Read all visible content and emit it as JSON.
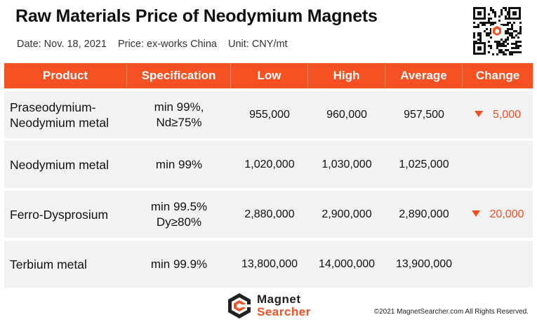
{
  "header": {
    "title": "Raw Materials Price of Neodymium Magnets",
    "date": "Date: Nov. 18, 2021",
    "price_basis": "Price: ex-works China",
    "unit": "Unit: CNY/mt"
  },
  "table": {
    "columns": [
      "Product",
      "Specification",
      "Low",
      "High",
      "Average",
      "Change"
    ],
    "rows": [
      {
        "product": "Praseodymium-\nNeodymium metal",
        "spec": "min 99%,\nNd≥75%",
        "low": "955,000",
        "high": "960,000",
        "average": "957,500",
        "change": "5,000",
        "change_direction": "down"
      },
      {
        "product": "Neodymium metal",
        "spec": "min 99%",
        "low": "1,020,000",
        "high": "1,030,000",
        "average": "1,025,000",
        "change": "",
        "change_direction": ""
      },
      {
        "product": "Ferro-Dysprosium",
        "spec": "min 99.5%\nDy≥80%",
        "low": "2,880,000",
        "high": "2,900,000",
        "average": "2,890,000",
        "change": "20,000",
        "change_direction": "down"
      },
      {
        "product": "Terbium metal",
        "spec": "min 99.9%",
        "low": "13,800,000",
        "high": "14,000,000",
        "average": "13,900,000",
        "change": "",
        "change_direction": ""
      }
    ]
  },
  "footer": {
    "logo_line1": "Magnet",
    "logo_line2": "Searcher",
    "copyright": "©2021 MagnetSearcher.com All Rights Reserved."
  },
  "colors": {
    "accent": "#f65123",
    "row_bg": "#f2f2f2",
    "down": "#f0501f"
  },
  "icons": {
    "qr": "qr-code-icon",
    "logo": "magnet-searcher-logo-icon",
    "change_down": "triangle-down-icon"
  }
}
